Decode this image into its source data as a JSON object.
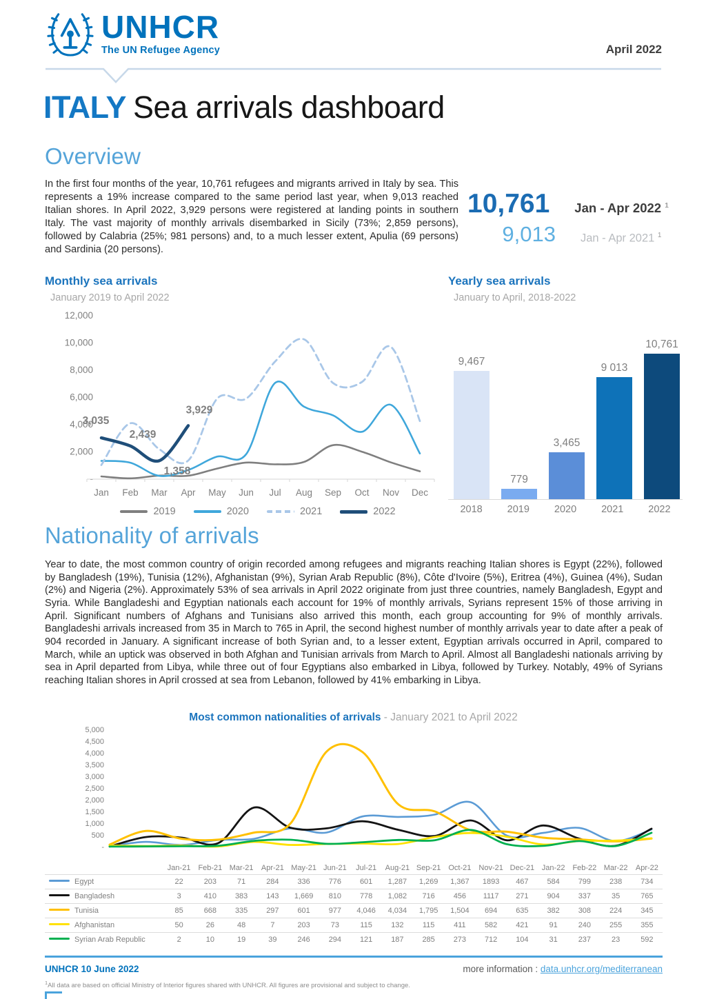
{
  "logo": {
    "wordmark": "UNHCR",
    "tagline": "The UN Refugee Agency"
  },
  "page": {
    "report_date": "April 2022"
  },
  "title": {
    "country": "ITALY",
    "rest": "Sea arrivals dashboard"
  },
  "overview": {
    "heading": "Overview",
    "body": "In the first four months of the year, 10,761 refugees and migrants arrived in Italy by sea. This represents a 19% increase compared to the same period last year, when 9,013 reached Italian shores. In April 2022, 3,929 persons were registered at landing points in southern Italy. The vast majority of monthly arrivals disembarked in Sicily (73%; 2,859 persons), followed by Calabria (25%; 981 persons) and, to a much lesser extent, Apulia (69 persons) and Sardinia (20 persons).",
    "stats": [
      {
        "value": "10,761",
        "label": "Jan - Apr 2022",
        "footnote_mark": "1"
      },
      {
        "value": "9,013",
        "label": "Jan - Apr 2021",
        "footnote_mark": "1"
      }
    ]
  },
  "nationality": {
    "heading": "Nationality of arrivals",
    "body": "Year to date, the most common country of origin recorded among refugees and migrants reaching Italian shores is Egypt (22%), followed by Bangladesh (19%), Tunisia (12%), Afghanistan (9%), Syrian Arab Republic (8%), Côte d'Ivoire (5%), Eritrea (4%), Guinea (4%), Sudan (2%) and Nigeria (2%). Approximately 53% of sea arrivals in April 2022 originate from just three countries, namely Bangladesh, Egypt and Syria. While Bangladeshi and Egyptian nationals each account for 19% of monthly arrivals, Syrians represent 15% of those arriving in April. Significant numbers of Afghans and Tunisians also arrived this month, each group accounting for 9% of monthly arrivals. Bangladeshi arrivals increased from 35 in March to 765 in April, the second highest number of monthly arrivals year to date after a peak of 904 recorded in January. A significant increase of both Syrian and, to a lesser extent, Egyptian arrivals occurred in April, compared to March, while an uptick was observed in both Afghan and Tunisian arrivals from March to April. Almost all Bangladeshi nationals arriving by sea in April departed from Libya, while three out of four Egyptians also embarked in Libya, followed by Turkey. Notably, 49% of Syrians reaching Italian shores in April crossed at sea from Lebanon, followed by 41% embarking in Libya."
  },
  "chart_data": [
    {
      "id": "monthly",
      "type": "line",
      "title": "Monthly sea arrivals",
      "subtitle": "January 2019 to April 2022",
      "categories": [
        "Jan",
        "Feb",
        "Mar",
        "Apr",
        "May",
        "Jun",
        "Jul",
        "Aug",
        "Sep",
        "Oct",
        "Nov",
        "Dec"
      ],
      "ylim": [
        0,
        12000
      ],
      "yticks": [
        "12,000",
        "10,000",
        "8,000",
        "6,000",
        "4,000",
        "2,000",
        "-"
      ],
      "legend_position": "bottom",
      "grid": false,
      "series": [
        {
          "name": "2019",
          "color": "#7f7f7f",
          "dash": false,
          "width": 2.6,
          "values": [
            202,
            60,
            262,
            255,
            782,
            1218,
            1088,
            1268,
            2498,
            2017,
            1232,
            575
          ]
        },
        {
          "name": "2020",
          "color": "#3fa7db",
          "dash": false,
          "width": 2.6,
          "values": [
            1342,
            1211,
            241,
            671,
            1654,
            1831,
            7067,
            5322,
            4687,
            3477,
            5459,
            1885
          ]
        },
        {
          "name": "2021",
          "color": "#a9c7e8",
          "dash": true,
          "width": 2.8,
          "values": [
            1039,
            4105,
            2204,
            1365,
            5920,
            5912,
            8636,
            10270,
            7065,
            7141,
            9709,
            4269
          ]
        },
        {
          "name": "2022",
          "color": "#1f4e79",
          "dash": false,
          "width": 4.5,
          "values": [
            3035,
            2439,
            1358,
            3929
          ],
          "labels": [
            {
              "index": 0,
              "text": "3,035",
              "dx": -8,
              "dy": -20
            },
            {
              "index": 1,
              "text": "2,439",
              "dx": 18,
              "dy": -12
            },
            {
              "index": 2,
              "text": "1,358",
              "dx": 26,
              "dy": 20
            },
            {
              "index": 3,
              "text": "3,929",
              "dx": 16,
              "dy": -18
            }
          ]
        }
      ]
    },
    {
      "id": "yearly",
      "type": "bar",
      "title": "Yearly sea arrivals",
      "subtitle": "January to April, 2018-2022",
      "categories": [
        "2018",
        "2019",
        "2020",
        "2021",
        "2022"
      ],
      "values": [
        9467,
        779,
        3465,
        9013,
        10761
      ],
      "labels": [
        "9,467",
        "779",
        "3,465",
        "9 013",
        "10,761"
      ],
      "colors": [
        "#d9e4f6",
        "#7aabf0",
        "#5b8ed8",
        "#0e72b8",
        "#0d4a7c"
      ],
      "ylim": [
        0,
        11300
      ]
    },
    {
      "id": "nationalities",
      "type": "line",
      "title": "Most common nationalities of arrivals",
      "subtitle": " - January 2021 to April 2022",
      "categories": [
        "Jan-21",
        "Feb-21",
        "Mar-21",
        "Apr-21",
        "May-21",
        "Jun-21",
        "Jul-21",
        "Aug-21",
        "Sep-21",
        "Oct-21",
        "Nov-21",
        "Dec-21",
        "Jan-22",
        "Feb-22",
        "Mar-22",
        "Apr-22"
      ],
      "ylim": [
        0,
        5000
      ],
      "yticks": [
        "5,000",
        "4,500",
        "4,000",
        "3,500",
        "3,000",
        "2,500",
        "2,000",
        "1,500",
        "1,000",
        "500",
        "-"
      ],
      "grid": false,
      "legend_position": "table-left",
      "series": [
        {
          "name": "Egypt",
          "color": "#5b9bd5",
          "dash": false,
          "width": 2.6,
          "values_display": [
            "22",
            "203",
            "71",
            "284",
            "336",
            "776",
            "601",
            "1,287",
            "1,269",
            "1,367",
            "1893",
            "467",
            "584",
            "799",
            "238",
            "734"
          ]
        },
        {
          "name": "Bangladesh",
          "color": "#141414",
          "dash": false,
          "width": 2.8,
          "values_display": [
            "3",
            "410",
            "383",
            "143",
            "1,669",
            "810",
            "778",
            "1,082",
            "716",
            "456",
            "1117",
            "271",
            "904",
            "337",
            "35",
            "765"
          ]
        },
        {
          "name": "Tunisia",
          "color": "#ffc000",
          "dash": false,
          "width": 3,
          "values_display": [
            "85",
            "668",
            "335",
            "297",
            "601",
            "977",
            "4,046",
            "4,034",
            "1,795",
            "1,504",
            "694",
            "635",
            "382",
            "308",
            "224",
            "345"
          ]
        },
        {
          "name": "Afghanistan",
          "color": "#ffe100",
          "dash": false,
          "width": 2.8,
          "values_display": [
            "50",
            "26",
            "48",
            "7",
            "203",
            "73",
            "115",
            "132",
            "115",
            "411",
            "582",
            "421",
            "91",
            "240",
            "255",
            "355"
          ]
        },
        {
          "name": "Syrian Arab Republic",
          "color": "#00b050",
          "dash": false,
          "width": 2.8,
          "values_display": [
            "2",
            "10",
            "19",
            "39",
            "246",
            "294",
            "121",
            "187",
            "285",
            "273",
            "712",
            "104",
            "31",
            "237",
            "23",
            "592"
          ]
        }
      ]
    }
  ],
  "footer": {
    "date_line": "UNHCR 10 June 2022",
    "more_info_label": "more information : ",
    "link": "data.unhcr.org/mediterranean",
    "footnote_mark": "1",
    "footnote": "All data are based on official Ministry of Interior figures shared with UNHCR. All figures are provisional and subject to change."
  }
}
